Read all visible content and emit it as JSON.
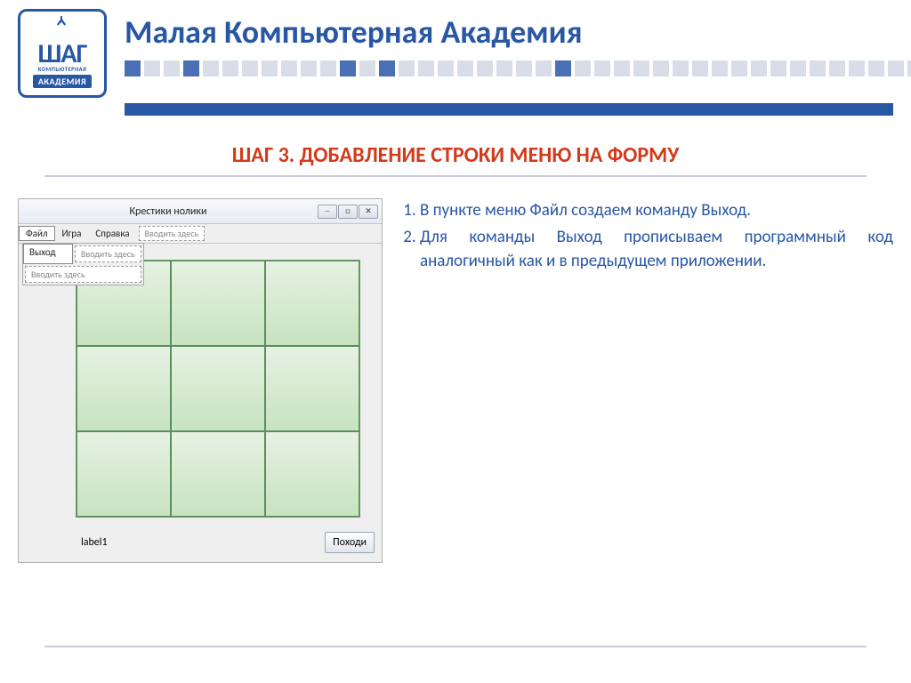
{
  "header": {
    "logo": {
      "top": "ШАГ",
      "mid": "КОМПЬЮТЕРНАЯ",
      "bottom": "АКАДЕМИЯ"
    },
    "title": "Малая Компьютерная Академия",
    "squares": [
      "dark",
      "light",
      "light",
      "dark",
      "light",
      "light",
      "light",
      "light",
      "light",
      "light",
      "light",
      "dark",
      "light",
      "dark",
      "light",
      "light",
      "light",
      "light",
      "light",
      "light",
      "light",
      "light",
      "dark",
      "light",
      "light",
      "light",
      "light",
      "light",
      "light",
      "light",
      "light",
      "light",
      "light",
      "light",
      "light",
      "light",
      "light",
      "light",
      "light",
      "light",
      "light",
      "light",
      "light"
    ]
  },
  "step_title": "ШАГ 3. ДОБАВЛЕНИЕ СТРОКИ МЕНЮ НА ФОРМУ",
  "screenshot": {
    "window_title": "Крестики нолики",
    "win_buttons": {
      "min": "─",
      "max": "□",
      "close": "✕"
    },
    "menu": {
      "file": "Файл",
      "game": "Игра",
      "help": "Справка",
      "type_here": "Вводить здесь",
      "exit": "Выход"
    },
    "label": "label1",
    "move_btn": "Походи",
    "grid": {
      "rows": 3,
      "cols": 3,
      "cell_color_top": "#e6f2e2",
      "cell_color_bottom": "#c7e3c0",
      "border_color": "#5d8d5d"
    }
  },
  "instructions": {
    "items": [
      "В пункте меню Файл создаем команду Выход.",
      "Для команды Выход прописываем программный код аналогичный как и в предыдущем приложении."
    ]
  },
  "colors": {
    "brand": "#2857a3",
    "accent": "#d23a1a",
    "rule": "#c8ccd4"
  }
}
